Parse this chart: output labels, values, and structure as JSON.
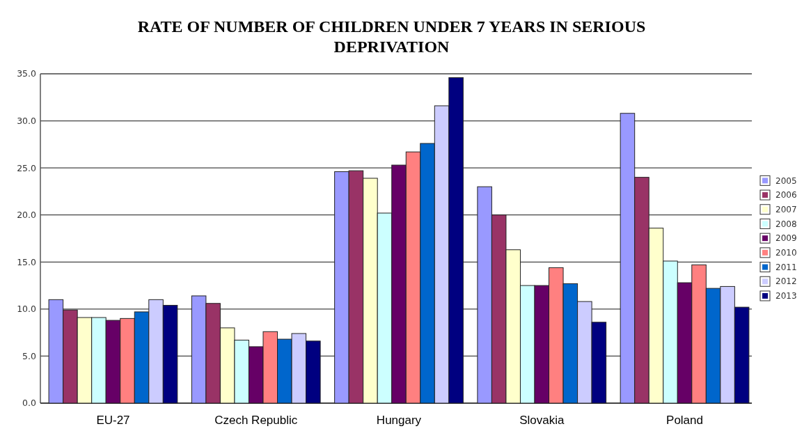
{
  "chart_data": {
    "type": "bar",
    "title": "RATE OF NUMBER OF CHILDREN UNDER 7 YEARS IN SERIOUS DEPRIVATION",
    "categories": [
      "EU-27",
      "Czech Republic",
      "Hungary",
      "Slovakia",
      "Poland"
    ],
    "series": [
      {
        "name": "2005",
        "color": "#9999ff",
        "values": [
          11.0,
          11.4,
          24.6,
          23.0,
          30.8
        ]
      },
      {
        "name": "2006",
        "color": "#993366",
        "values": [
          9.9,
          10.6,
          24.7,
          20.0,
          24.0
        ]
      },
      {
        "name": "2007",
        "color": "#ffffcc",
        "values": [
          9.1,
          8.0,
          23.9,
          16.3,
          18.6
        ]
      },
      {
        "name": "2008",
        "color": "#ccffff",
        "values": [
          9.1,
          6.7,
          20.2,
          12.5,
          15.1
        ]
      },
      {
        "name": "2009",
        "color": "#660066",
        "values": [
          8.8,
          6.0,
          25.3,
          12.5,
          12.8
        ]
      },
      {
        "name": "2010",
        "color": "#ff8080",
        "values": [
          9.0,
          7.6,
          26.7,
          14.4,
          14.7
        ]
      },
      {
        "name": "2011",
        "color": "#0066cc",
        "values": [
          9.7,
          6.8,
          27.6,
          12.7,
          12.2
        ]
      },
      {
        "name": "2012",
        "color": "#ccccff",
        "values": [
          11.0,
          7.4,
          31.6,
          10.8,
          12.4
        ]
      },
      {
        "name": "2013",
        "color": "#000080",
        "values": [
          10.4,
          6.6,
          34.6,
          8.6,
          10.2
        ]
      }
    ],
    "ylim": [
      0,
      35
    ],
    "yticks": [
      {
        "value": 0,
        "label": "0.0"
      },
      {
        "value": 5,
        "label": "5.0"
      },
      {
        "value": 10,
        "label": "10.0"
      },
      {
        "value": 15,
        "label": "15.0"
      },
      {
        "value": 20,
        "label": "20.0"
      },
      {
        "value": 25,
        "label": "25.0"
      },
      {
        "value": 30,
        "label": "30.0"
      },
      {
        "value": 35,
        "label": "35.0"
      }
    ],
    "grid": "y",
    "legend": "right"
  }
}
